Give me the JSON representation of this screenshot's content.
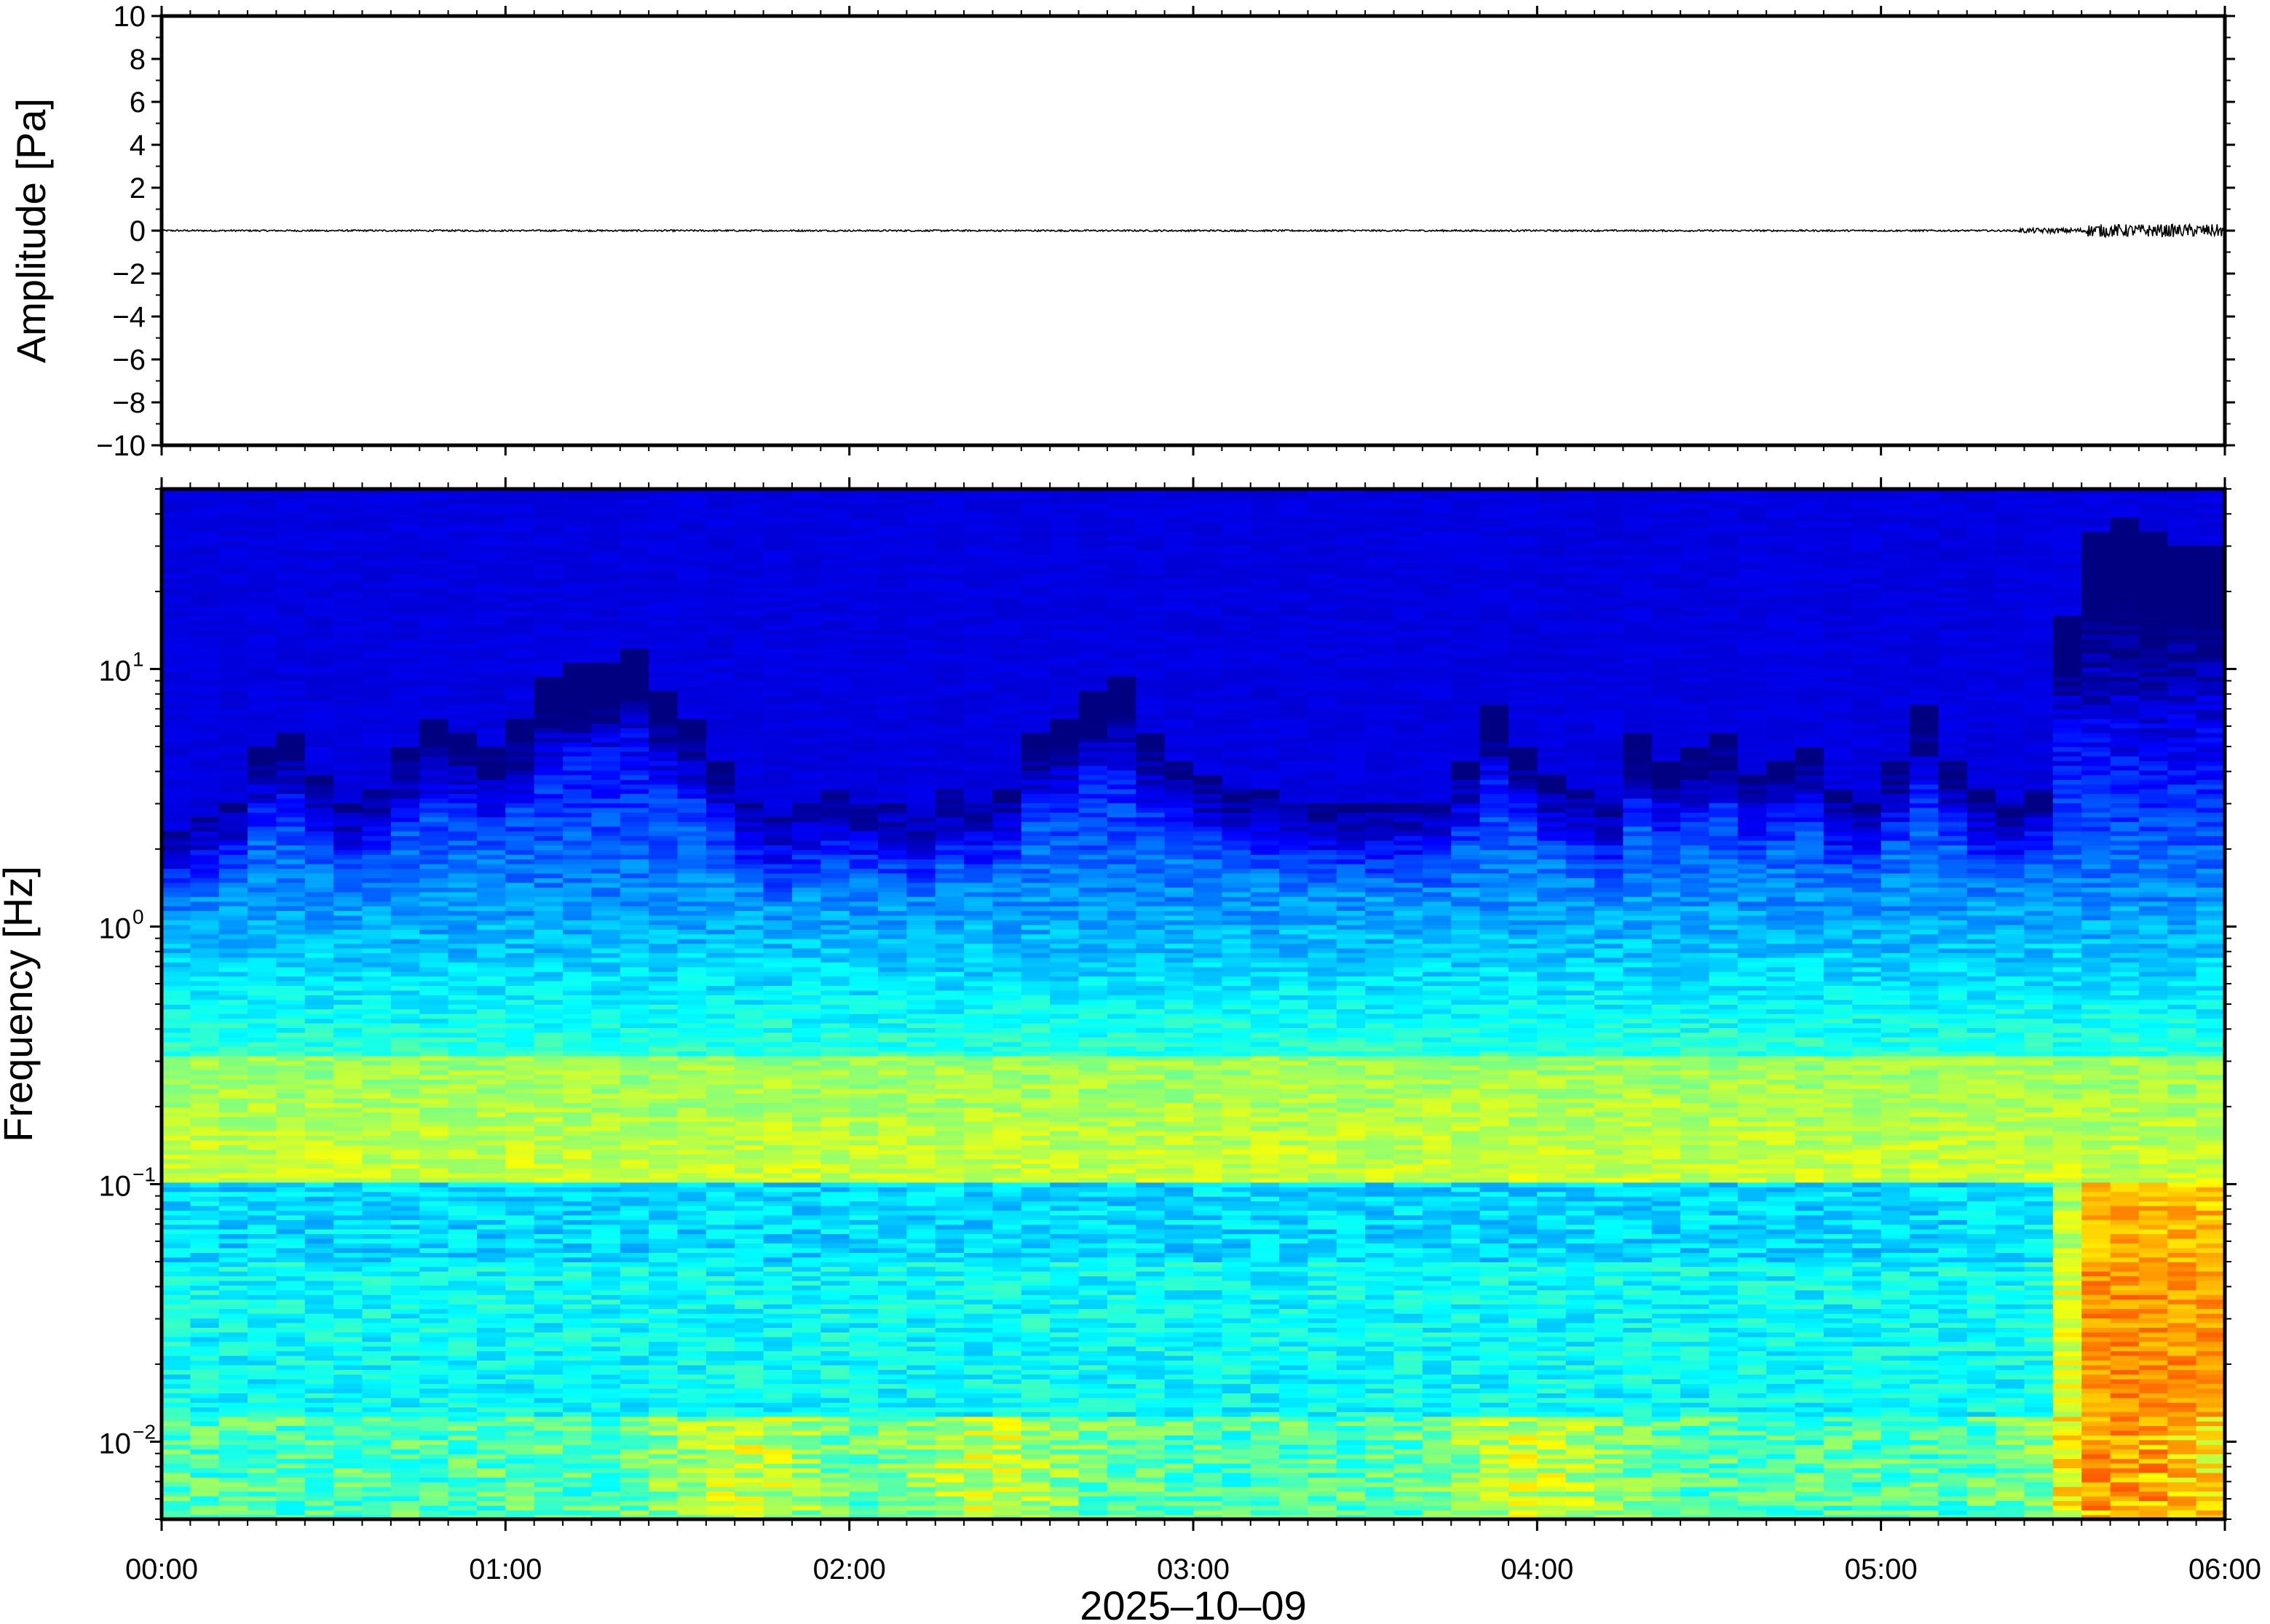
{
  "chart_data": [
    {
      "type": "line",
      "ylabel": "Amplitude [Pa]",
      "ylim": [
        -10,
        10
      ],
      "yticks": [
        "10",
        "8",
        "6",
        "4",
        "2",
        "0",
        "−2",
        "−4",
        "−6",
        "−8",
        "−10"
      ],
      "ytick_values": [
        10,
        8,
        6,
        4,
        2,
        0,
        -2,
        -4,
        -6,
        -8,
        -10
      ],
      "x_range_hours": [
        0,
        6
      ],
      "signal": {
        "baseline": 0,
        "noise_segments": [
          {
            "start_hour": 0.0,
            "end_hour": 5.4,
            "amplitude": 0.04
          },
          {
            "start_hour": 5.4,
            "end_hour": 5.6,
            "amplitude": 0.12
          },
          {
            "start_hour": 5.6,
            "end_hour": 6.0,
            "amplitude": 0.3
          }
        ]
      },
      "line_color": "#000000"
    },
    {
      "type": "heatmap",
      "ylabel": "Frequency [Hz]",
      "xlabel": "2025–10–09",
      "yscale": "log",
      "ylim": [
        0.005,
        50
      ],
      "yticks": [
        {
          "base": "10",
          "exp": "1",
          "value": 10
        },
        {
          "base": "10",
          "exp": "0",
          "value": 1
        },
        {
          "base": "10",
          "exp": "−1",
          "value": 0.1
        },
        {
          "base": "10",
          "exp": "−2",
          "value": 0.01
        }
      ],
      "xticks": [
        "00:00",
        "01:00",
        "02:00",
        "03:00",
        "04:00",
        "05:00",
        "06:00"
      ],
      "xtick_hours": [
        0,
        1,
        2,
        3,
        4,
        5,
        6
      ],
      "colormap": "jet",
      "num_time_bins": 72,
      "column_activity": [
        0.2,
        0.25,
        0.3,
        0.5,
        0.55,
        0.4,
        0.3,
        0.35,
        0.5,
        0.6,
        0.55,
        0.5,
        0.6,
        0.75,
        0.8,
        0.8,
        0.85,
        0.7,
        0.6,
        0.45,
        0.3,
        0.25,
        0.3,
        0.35,
        0.3,
        0.3,
        0.25,
        0.35,
        0.3,
        0.35,
        0.55,
        0.6,
        0.7,
        0.75,
        0.55,
        0.45,
        0.4,
        0.35,
        0.35,
        0.3,
        0.3,
        0.3,
        0.3,
        0.3,
        0.3,
        0.45,
        0.65,
        0.5,
        0.4,
        0.35,
        0.3,
        0.55,
        0.45,
        0.5,
        0.55,
        0.4,
        0.45,
        0.5,
        0.35,
        0.3,
        0.45,
        0.65,
        0.45,
        0.35,
        0.3,
        0.3,
        0.4,
        0.35,
        0.4,
        0.35,
        0.3,
        0.3
      ],
      "late_event_start_hour": 5.45,
      "low_freq_hotspots_hours": [
        1.7,
        2.4,
        4.0,
        5.7
      ]
    }
  ]
}
